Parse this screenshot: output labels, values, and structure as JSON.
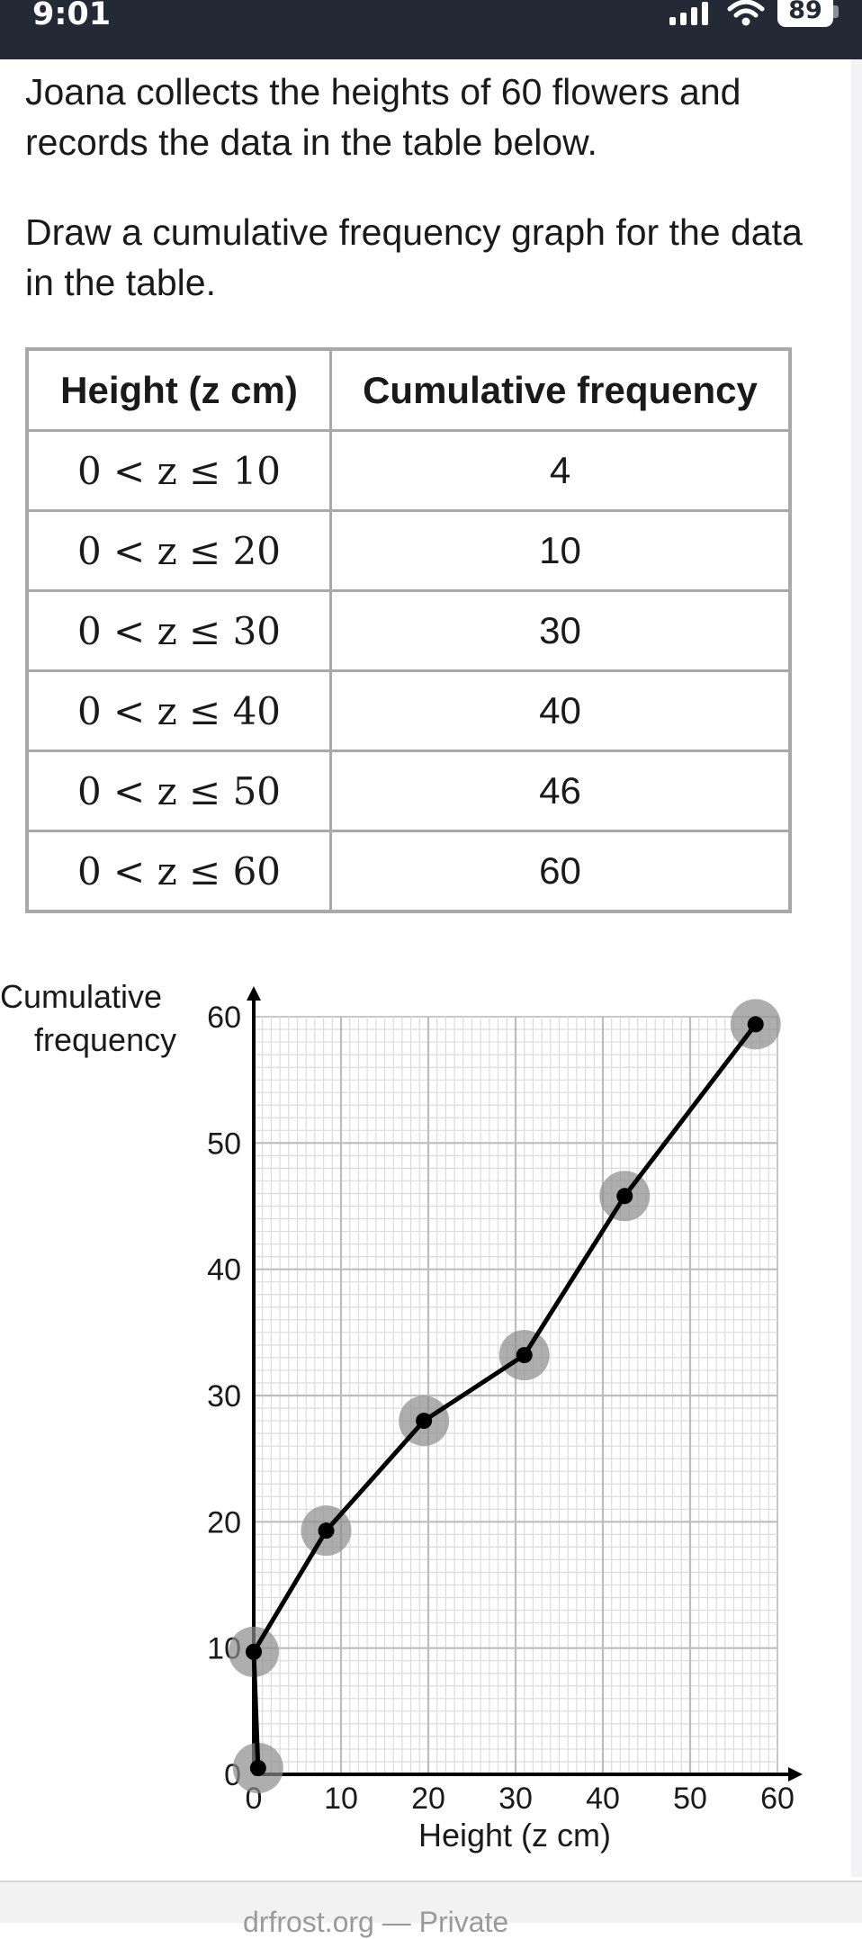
{
  "status_bar": {
    "time": "9:01",
    "battery": "89",
    "icons": [
      "signal-icon",
      "wifi-icon",
      "battery-icon"
    ]
  },
  "question": {
    "paragraph_1": "Joana collects the heights of 60 flowers and records the data in the table below.",
    "paragraph_2": "Draw a cumulative frequency graph for the data in the table."
  },
  "table": {
    "headers": [
      "Height (z cm)",
      "Cumulative frequency"
    ],
    "rows": [
      {
        "interval": "0 < z ≤ 10",
        "frequency": "4"
      },
      {
        "interval": "0 < z ≤ 20",
        "frequency": "10"
      },
      {
        "interval": "0 < z ≤ 30",
        "frequency": "30"
      },
      {
        "interval": "0 < z ≤ 40",
        "frequency": "40"
      },
      {
        "interval": "0 < z ≤ 50",
        "frequency": "46"
      },
      {
        "interval": "0 < z ≤ 60",
        "frequency": "60"
      }
    ]
  },
  "chart_data": {
    "type": "line",
    "ylabel_line1": "Cumulative",
    "ylabel_line2": "frequency",
    "xlabel": "Height (z cm)",
    "xlim": [
      0,
      60
    ],
    "ylim": [
      0,
      60
    ],
    "xticks": [
      "0",
      "10",
      "20",
      "30",
      "40",
      "50",
      "60"
    ],
    "yticks": [
      "0",
      "10",
      "20",
      "30",
      "40",
      "50",
      "60"
    ],
    "grid": true,
    "points": [
      {
        "x": 0.5,
        "y": 0.5
      },
      {
        "x": 0,
        "y": 9.7
      },
      {
        "x": 8.3,
        "y": 19.3
      },
      {
        "x": 19.5,
        "y": 28
      },
      {
        "x": 31,
        "y": 33.2
      },
      {
        "x": 42.5,
        "y": 45.8
      },
      {
        "x": 57.5,
        "y": 59.4
      }
    ],
    "marker_color": "#000000",
    "highlight_color": "#8c8c8c"
  },
  "bottom_bar": {
    "text": "drfrost.org — Private"
  }
}
